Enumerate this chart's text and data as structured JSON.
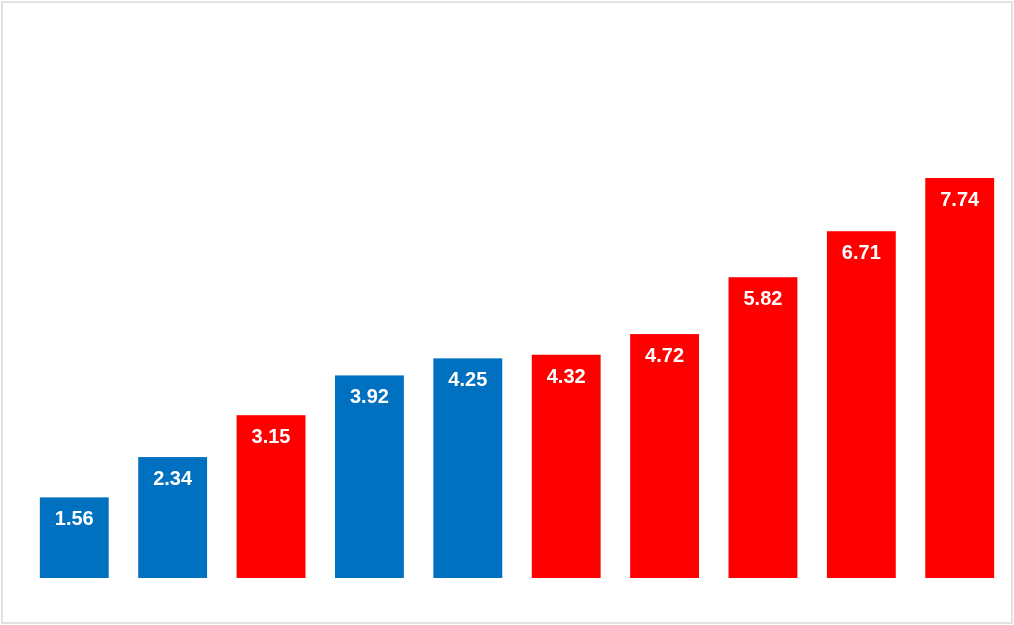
{
  "chart_data": {
    "type": "bar",
    "categories": [
      null,
      null,
      null,
      null,
      null,
      null,
      null,
      null,
      null,
      null
    ],
    "values": [
      1.56,
      2.34,
      3.15,
      3.92,
      4.25,
      4.32,
      4.72,
      5.82,
      6.71,
      7.74
    ],
    "colors": [
      "#0070c0",
      "#0070c0",
      "#ff0000",
      "#0070c0",
      "#0070c0",
      "#ff0000",
      "#ff0000",
      "#ff0000",
      "#ff0000",
      "#ff0000"
    ],
    "data_labels": true
  }
}
